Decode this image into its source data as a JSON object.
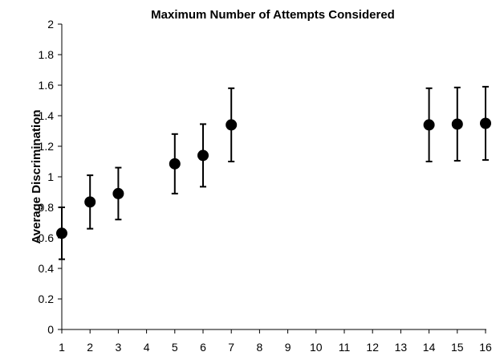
{
  "chart_data": {
    "type": "scatter",
    "title": "Maximum Number of Attempts Considered",
    "xlabel": "",
    "ylabel": "Average Discrimination",
    "xlim": [
      1,
      16
    ],
    "ylim": [
      0,
      2
    ],
    "x_ticks": [
      "1",
      "2",
      "3",
      "4",
      "5",
      "6",
      "7",
      "8",
      "9",
      "10",
      "11",
      "12",
      "13",
      "14",
      "15",
      "16"
    ],
    "y_ticks": [
      "0",
      "0.2",
      "0.4",
      "0.6",
      "0.8",
      "1",
      "1.2",
      "1.4",
      "1.6",
      "1.8",
      "2"
    ],
    "grid": false,
    "legend": "none",
    "series": [
      {
        "x": [
          1,
          2,
          3,
          5,
          6,
          7,
          14,
          15,
          16
        ],
        "y": [
          0.63,
          0.835,
          0.89,
          1.085,
          1.14,
          1.34,
          1.34,
          1.345,
          1.35
        ],
        "err_low": [
          0.17,
          0.175,
          0.17,
          0.195,
          0.205,
          0.24,
          0.24,
          0.24,
          0.24
        ],
        "err_high": [
          0.17,
          0.175,
          0.17,
          0.195,
          0.205,
          0.24,
          0.24,
          0.24,
          0.24
        ]
      }
    ],
    "colors": {
      "marker": "#000000",
      "axis": "#000000"
    }
  }
}
